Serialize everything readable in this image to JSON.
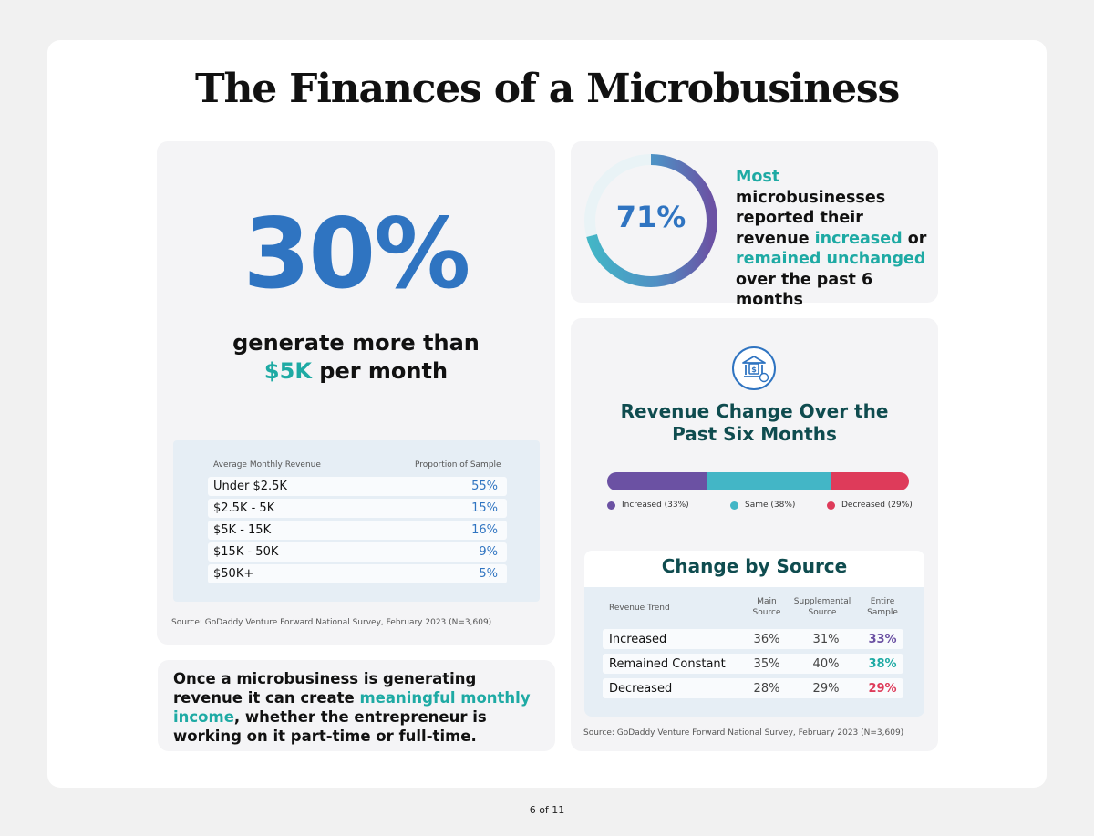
{
  "title": "The Finances of a Microbusiness",
  "revenue_card": {
    "big_stat": "30%",
    "desc_line1": "generate more than",
    "desc_highlight": "$5K",
    "desc_line2_rest": " per month",
    "table": {
      "col1": "Average Monthly Revenue",
      "col2": "Proportion of Sample",
      "rows": [
        {
          "label": "Under $2.5K",
          "value": "55%"
        },
        {
          "label": "$2.5K - 5K",
          "value": "15%"
        },
        {
          "label": "$5K - 15K",
          "value": "16%"
        },
        {
          "label": "$15K - 50K",
          "value": "9%"
        },
        {
          "label": "$50K+",
          "value": "5%"
        }
      ]
    },
    "source": "Source: GoDaddy Venture Forward National Survey, February 2023 (N=3,609)"
  },
  "donut_card": {
    "value_label": "71%",
    "value_fraction": 0.71,
    "text_parts": [
      {
        "text": "Most",
        "hl": true
      },
      {
        "text": " microbusinesses reported their revenue ",
        "hl": false
      },
      {
        "text": "increased",
        "hl": true
      },
      {
        "text": " or ",
        "hl": false
      },
      {
        "text": "remained unchanged",
        "hl": true
      },
      {
        "text": " over the past 6 months",
        "hl": false
      }
    ]
  },
  "change_card": {
    "icon": "bank-money-icon",
    "title_line1": "Revenue Change Over the",
    "title_line2": "Past Six Months",
    "legend": {
      "increased": "Increased (33%)",
      "same": "Same (38%)",
      "decreased": "Decreased (29%)"
    },
    "source_table": {
      "title": "Change by Source",
      "col_trend": "Revenue Trend",
      "col_main": [
        "Main",
        "Source"
      ],
      "col_supp": [
        "Supplemental",
        "Source"
      ],
      "col_entire": [
        "Entire",
        "Sample"
      ],
      "rows": [
        {
          "label": "Increased",
          "main": "36%",
          "supp": "31%",
          "entire": "33%"
        },
        {
          "label": "Remained Constant",
          "main": "35%",
          "supp": "40%",
          "entire": "38%"
        },
        {
          "label": "Decreased",
          "main": "28%",
          "supp": "29%",
          "entire": "29%"
        }
      ]
    },
    "source": "Source: GoDaddy Venture Forward National Survey, February 2023 (N=3,609)"
  },
  "income_card": {
    "parts": [
      {
        "text": "Once a microbusiness is generating revenue it can create ",
        "hl": false
      },
      {
        "text": "meaningful monthly income",
        "hl": true
      },
      {
        "text": ", whether the entrepreneur is working on it part-time or full-time.",
        "hl": false
      }
    ]
  },
  "page_indicator": "6 of 11",
  "colors": {
    "blue": "#2f74c1",
    "teal": "#1eaaa4",
    "increased": "#6b51a3",
    "same": "#43b6c6",
    "decreased": "#de3b5a",
    "dark_teal": "#0f4c4f"
  }
}
